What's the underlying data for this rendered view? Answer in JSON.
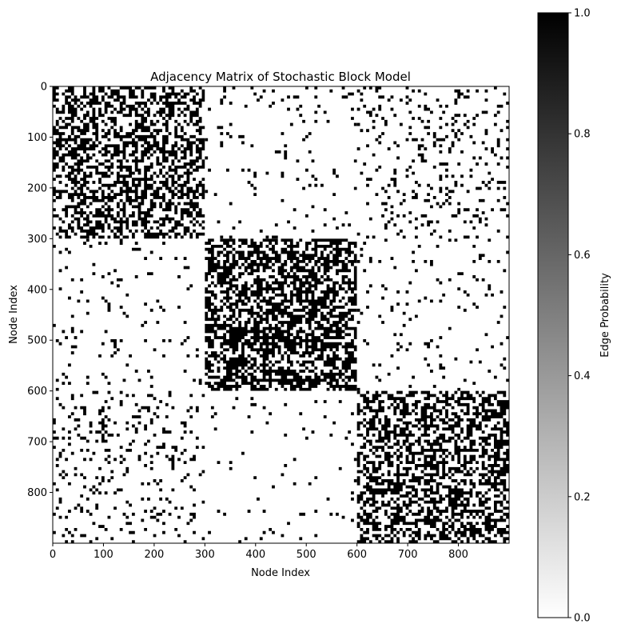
{
  "chart_data": {
    "type": "heatmap",
    "title": "Adjacency Matrix of Stochastic Block Model",
    "xlabel": "Node Index",
    "ylabel": "Node Index",
    "n_nodes": 900,
    "xlim": [
      0,
      900
    ],
    "ylim": [
      900,
      0
    ],
    "x_ticks": [
      0,
      100,
      200,
      300,
      400,
      500,
      600,
      700,
      800
    ],
    "y_ticks": [
      0,
      100,
      200,
      300,
      400,
      500,
      600,
      700,
      800
    ],
    "blocks": [
      {
        "rows": [
          0,
          300
        ],
        "cols": [
          0,
          300
        ],
        "edge_probability": 0.5
      },
      {
        "rows": [
          0,
          300
        ],
        "cols": [
          300,
          600
        ],
        "edge_probability": 0.05
      },
      {
        "rows": [
          0,
          300
        ],
        "cols": [
          600,
          900
        ],
        "edge_probability": 0.12
      },
      {
        "rows": [
          300,
          600
        ],
        "cols": [
          0,
          300
        ],
        "edge_probability": 0.05
      },
      {
        "rows": [
          300,
          600
        ],
        "cols": [
          300,
          600
        ],
        "edge_probability": 0.6
      },
      {
        "rows": [
          300,
          600
        ],
        "cols": [
          600,
          900
        ],
        "edge_probability": 0.05
      },
      {
        "rows": [
          600,
          900
        ],
        "cols": [
          0,
          300
        ],
        "edge_probability": 0.12
      },
      {
        "rows": [
          600,
          900
        ],
        "cols": [
          300,
          600
        ],
        "edge_probability": 0.03
      },
      {
        "rows": [
          600,
          900
        ],
        "cols": [
          600,
          900
        ],
        "edge_probability": 0.5
      }
    ],
    "colorbar": {
      "label": "Edge Probability",
      "range": [
        0,
        1
      ],
      "ticks": [
        "0.0",
        "0.2",
        "0.4",
        "0.6",
        "0.8",
        "1.0"
      ],
      "colormap": "greys",
      "color_low": "#ffffff",
      "color_high": "#000000"
    },
    "grid": false,
    "legend": "none"
  }
}
